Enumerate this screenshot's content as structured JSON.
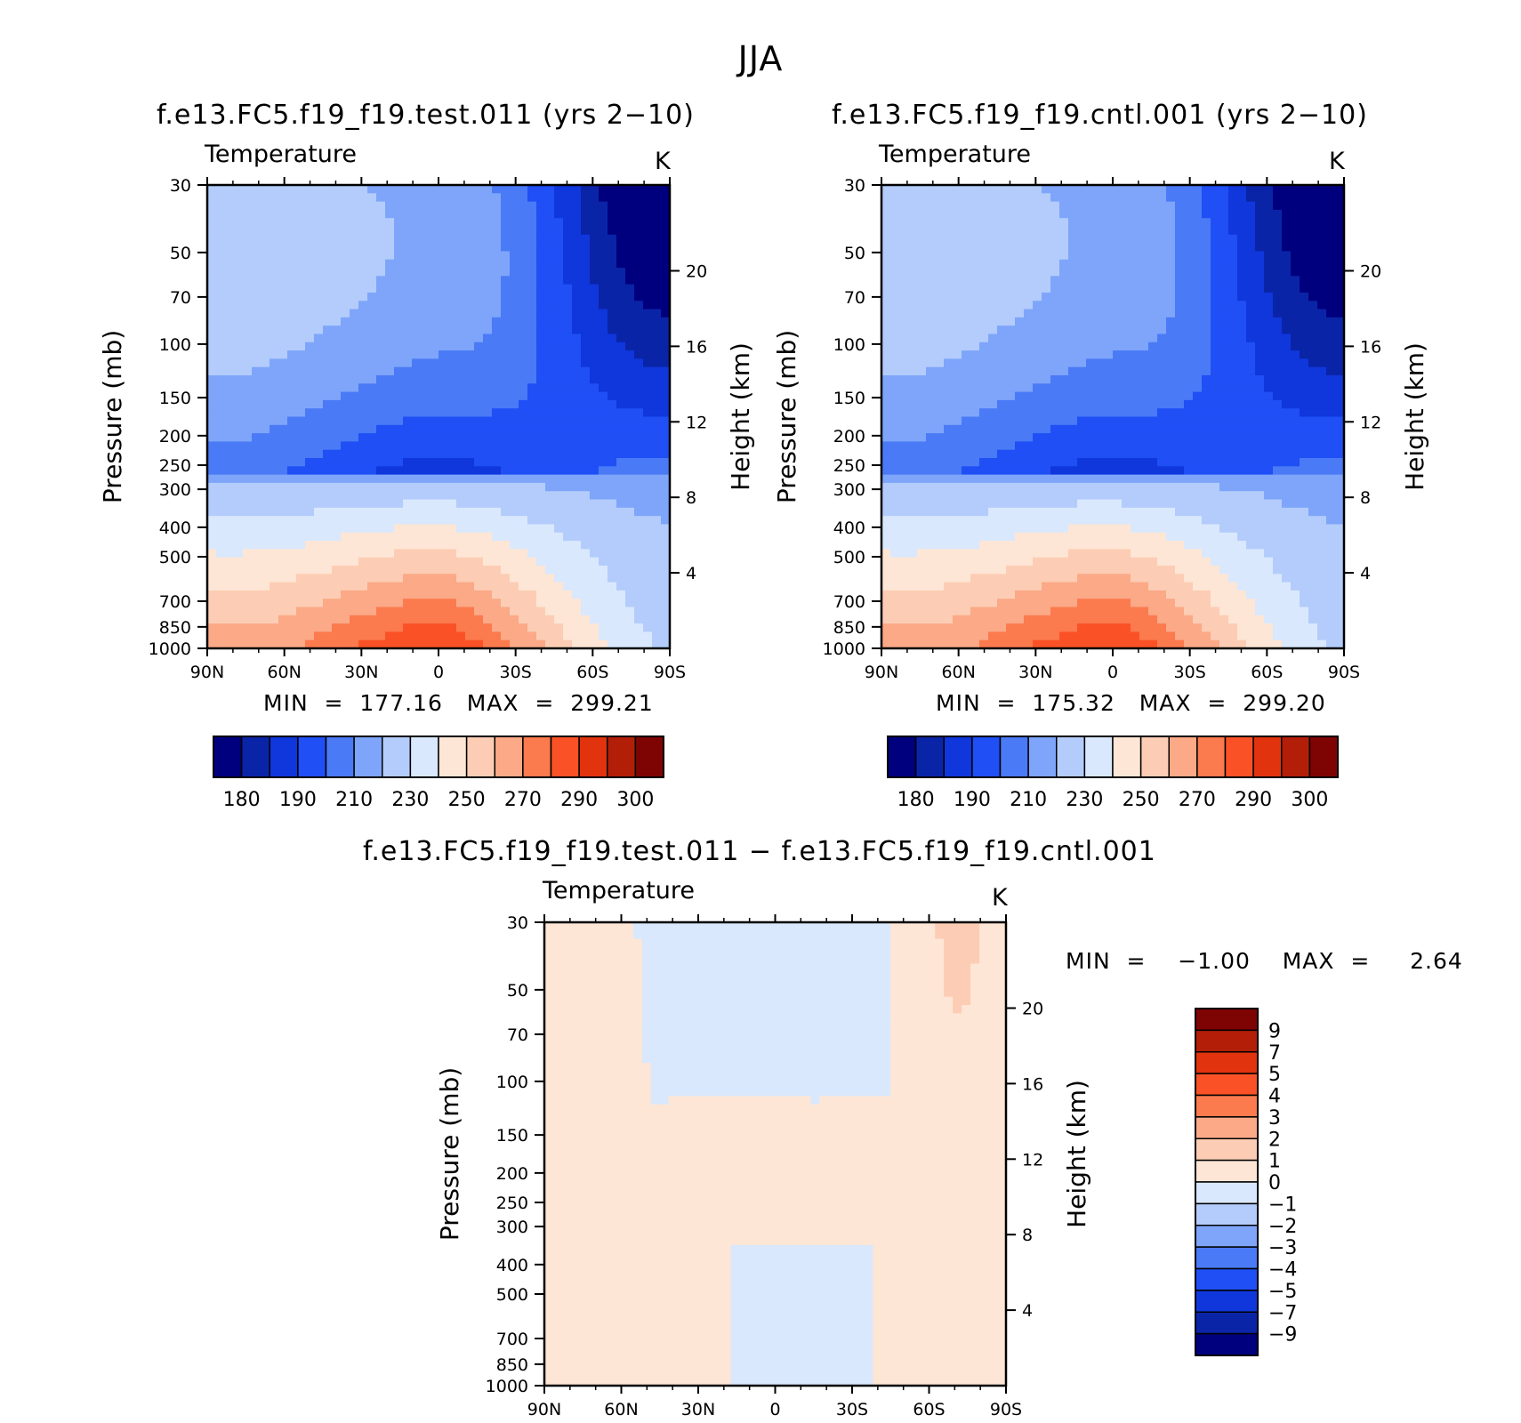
{
  "figure": {
    "season": "JJA",
    "panels": [
      {
        "title": "f.e13.FC5.f19_f19.test.011 (yrs 2−10)",
        "variable": "Temperature",
        "units": "K",
        "min_label": "MIN",
        "min_value": "177.16",
        "max_label": "MAX",
        "max_value": "299.21",
        "colorbar_labels": [
          "180",
          "190",
          "210",
          "230",
          "250",
          "270",
          "290",
          "300"
        ]
      },
      {
        "title": "f.e13.FC5.f19_f19.cntl.001 (yrs 2−10)",
        "variable": "Temperature",
        "units": "K",
        "min_label": "MIN",
        "min_value": "175.32",
        "max_label": "MAX",
        "max_value": "299.20",
        "colorbar_labels": [
          "180",
          "190",
          "210",
          "230",
          "250",
          "270",
          "290",
          "300"
        ]
      },
      {
        "title": "f.e13.FC5.f19_f19.test.011 − f.e13.FC5.f19_f19.cntl.001",
        "variable": "Temperature",
        "units": "K",
        "min_label": "MIN",
        "min_value": "−1.00",
        "max_label": "MAX",
        "max_value": "2.64",
        "colorbar_labels": [
          "9",
          "7",
          "5",
          "4",
          "3",
          "2",
          "1",
          "0",
          "−1",
          "−2",
          "−3",
          "−4",
          "−5",
          "−7",
          "−9"
        ]
      }
    ]
  },
  "chart_data": [
    {
      "type": "heatmap",
      "title": "f.e13.FC5.f19_f19.test.011 (yrs 2−10)",
      "variable": "Temperature",
      "units": "K",
      "xlabel": "",
      "ylabel": "Pressure (mb)",
      "y2label": "Height (km)",
      "x_ticks": [
        "90N",
        "60N",
        "30N",
        "0",
        "30S",
        "60S",
        "90S"
      ],
      "y_ticks": [
        30,
        50,
        70,
        100,
        150,
        200,
        250,
        300,
        400,
        500,
        700,
        850,
        1000
      ],
      "y2_ticks": [
        4,
        8,
        12,
        16,
        20
      ],
      "xlim": [
        90,
        -90
      ],
      "ylim": [
        1000,
        30
      ],
      "y_scale": "log",
      "min": 177.16,
      "max": 299.21,
      "levels": [
        180,
        190,
        200,
        210,
        220,
        230,
        240,
        250,
        260,
        270,
        280,
        290,
        300
      ],
      "colors": [
        "#00007f",
        "#0a24a8",
        "#0f37dc",
        "#1f4ff5",
        "#4a7af5",
        "#7ea5fa",
        "#b3ccfb",
        "#d9e8fd",
        "#fde6d5",
        "#fccdb4",
        "#fba987",
        "#fb7a4e",
        "#fa5226",
        "#e2330f",
        "#b31e08",
        "#7e0404"
      ]
    },
    {
      "type": "heatmap",
      "title": "f.e13.FC5.f19_f19.cntl.001 (yrs 2−10)",
      "variable": "Temperature",
      "units": "K",
      "xlabel": "",
      "ylabel": "Pressure (mb)",
      "y2label": "Height (km)",
      "x_ticks": [
        "90N",
        "60N",
        "30N",
        "0",
        "30S",
        "60S",
        "90S"
      ],
      "y_ticks": [
        30,
        50,
        70,
        100,
        150,
        200,
        250,
        300,
        400,
        500,
        700,
        850,
        1000
      ],
      "y2_ticks": [
        4,
        8,
        12,
        16,
        20
      ],
      "xlim": [
        90,
        -90
      ],
      "ylim": [
        1000,
        30
      ],
      "y_scale": "log",
      "min": 175.32,
      "max": 299.2,
      "levels": [
        180,
        190,
        200,
        210,
        220,
        230,
        240,
        250,
        260,
        270,
        280,
        290,
        300
      ],
      "colors": [
        "#00007f",
        "#0a24a8",
        "#0f37dc",
        "#1f4ff5",
        "#4a7af5",
        "#7ea5fa",
        "#b3ccfb",
        "#d9e8fd",
        "#fde6d5",
        "#fccdb4",
        "#fba987",
        "#fb7a4e",
        "#fa5226",
        "#e2330f",
        "#b31e08",
        "#7e0404"
      ]
    },
    {
      "type": "heatmap",
      "title": "f.e13.FC5.f19_f19.test.011 − f.e13.FC5.f19_f19.cntl.001",
      "variable": "Temperature",
      "units": "K",
      "xlabel": "",
      "ylabel": "Pressure (mb)",
      "y2label": "Height (km)",
      "x_ticks": [
        "90N",
        "60N",
        "30N",
        "0",
        "30S",
        "60S",
        "90S"
      ],
      "y_ticks": [
        30,
        50,
        70,
        100,
        150,
        200,
        250,
        300,
        400,
        500,
        700,
        850,
        1000
      ],
      "y2_ticks": [
        4,
        8,
        12,
        16,
        20
      ],
      "xlim": [
        90,
        -90
      ],
      "ylim": [
        1000,
        30
      ],
      "y_scale": "log",
      "min": -1.0,
      "max": 2.64,
      "levels": [
        -9,
        -7,
        -5,
        -4,
        -3,
        -2,
        -1,
        0,
        1,
        2,
        3,
        4,
        5,
        7,
        9
      ],
      "colors": [
        "#00007f",
        "#0a24a8",
        "#0f37dc",
        "#1f4ff5",
        "#4a7af5",
        "#7ea5fa",
        "#b3ccfb",
        "#d9e8fd",
        "#fde6d5",
        "#fccdb4",
        "#fba987",
        "#fb7a4e",
        "#fa5226",
        "#e2330f",
        "#b31e08",
        "#7e0404"
      ]
    }
  ]
}
